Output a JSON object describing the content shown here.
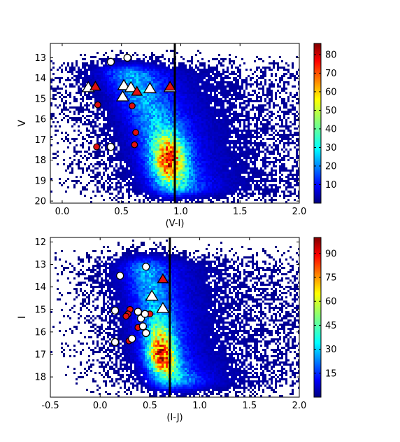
{
  "chart_data": [
    {
      "type": "heatmap",
      "xlabel": "(V-I)",
      "ylabel": "V",
      "xlim": [
        -0.1,
        2.0
      ],
      "ylim": [
        20.1,
        12.3
      ],
      "x_ticks": [
        "0.0",
        "0.5",
        "1.0",
        "1.5",
        "2.0"
      ],
      "y_ticks": [
        "13",
        "14",
        "15",
        "16",
        "17",
        "18",
        "19",
        "20"
      ],
      "colorbar": {
        "min": 0,
        "max": 86,
        "ticks": [
          "10",
          "20",
          "30",
          "40",
          "50",
          "60",
          "70",
          "80"
        ]
      },
      "vertical_line_x": 0.95,
      "density": {
        "ridge": [
          [
            13.5,
            0.55
          ],
          [
            16.0,
            0.78
          ],
          [
            18.0,
            0.88
          ],
          [
            19.5,
            0.98
          ]
        ],
        "peak": [
          0.9,
          17.9
        ]
      },
      "white_circles": [
        [
          0.41,
          13.2
        ],
        [
          0.55,
          13.0
        ],
        [
          0.41,
          17.35
        ]
      ],
      "red_circles": [
        [
          0.3,
          15.3
        ],
        [
          0.59,
          15.35
        ],
        [
          0.62,
          16.65
        ],
        [
          0.61,
          17.25
        ],
        [
          0.29,
          17.35
        ]
      ],
      "white_triangles": [
        [
          0.22,
          14.45
        ],
        [
          0.52,
          14.35
        ],
        [
          0.58,
          14.45
        ],
        [
          0.51,
          14.9
        ],
        [
          0.74,
          14.5
        ],
        [
          0.91,
          14.45
        ]
      ],
      "red_triangles": [
        [
          0.28,
          14.4
        ],
        [
          0.63,
          14.65
        ],
        [
          0.91,
          14.4
        ]
      ]
    },
    {
      "type": "heatmap",
      "xlabel": "(I-J)",
      "ylabel": "I",
      "xlim": [
        -0.5,
        2.0
      ],
      "ylim": [
        18.9,
        11.8
      ],
      "x_ticks": [
        "-0.5",
        "0.0",
        "0.5",
        "1.0",
        "1.5",
        "2.0"
      ],
      "y_ticks": [
        "12",
        "13",
        "14",
        "15",
        "16",
        "17",
        "18"
      ],
      "colorbar": {
        "min": 0,
        "max": 100,
        "ticks": [
          "15",
          "30",
          "45",
          "60",
          "75",
          "90"
        ]
      },
      "vertical_line_x": 0.7,
      "density": {
        "ridge": [
          [
            13.0,
            0.45
          ],
          [
            15.0,
            0.55
          ],
          [
            17.0,
            0.62
          ],
          [
            18.2,
            0.8
          ]
        ],
        "peak": [
          0.6,
          17.0
        ]
      },
      "white_circles": [
        [
          0.2,
          13.5
        ],
        [
          0.46,
          13.1
        ],
        [
          0.15,
          15.05
        ],
        [
          0.38,
          15.1
        ],
        [
          0.41,
          15.4
        ],
        [
          0.43,
          15.75
        ],
        [
          0.46,
          16.05
        ],
        [
          0.32,
          16.3
        ],
        [
          0.15,
          16.45
        ],
        [
          0.45,
          15.2
        ]
      ],
      "red_circles": [
        [
          0.3,
          15.0
        ],
        [
          0.28,
          15.2
        ],
        [
          0.26,
          15.3
        ],
        [
          0.5,
          15.2
        ],
        [
          0.38,
          15.8
        ],
        [
          0.29,
          16.4
        ]
      ],
      "white_triangles": [
        [
          0.52,
          14.4
        ],
        [
          0.63,
          14.95
        ]
      ],
      "red_triangles": [
        [
          0.63,
          13.65
        ]
      ]
    }
  ],
  "colors": {
    "line": "#000000",
    "marker_red": "#e01010",
    "marker_white": "#ffffff"
  }
}
